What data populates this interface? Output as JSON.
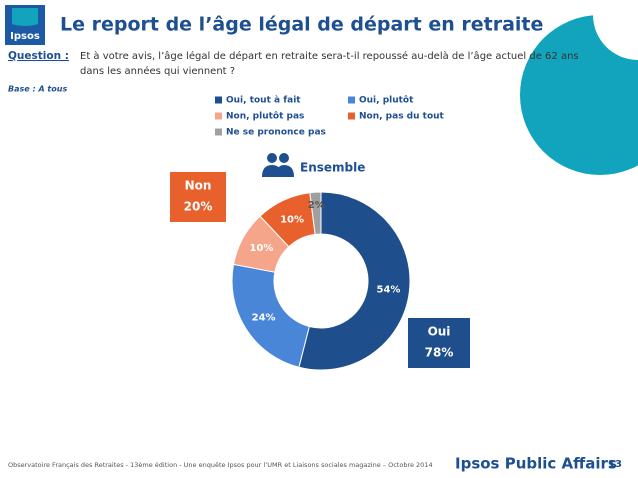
{
  "header": {
    "logo": "Ipsos",
    "title": "Le report de l’âge légal de départ en retraite"
  },
  "question": {
    "label": "Question :",
    "lines": [
      "Et à votre avis, l’âge légal de départ en retraite sera-t-il repoussé au-delà de l’âge actuel de 62 ans",
      "dans les années qui viennent ?"
    ]
  },
  "base": "Base : A tous",
  "chart_data": {
    "type": "donut",
    "title": "Ensemble",
    "categories": [
      "Oui, tout à fait",
      "Oui, plutôt",
      "Non, plutôt pas",
      "Non, pas du tout",
      "Ne se prononce pas"
    ],
    "values": [
      54,
      24,
      10,
      10,
      2
    ],
    "value_labels": [
      "54%",
      "24%",
      "10%",
      "10%",
      "2%"
    ],
    "colors": [
      "#1f4e8c",
      "#4a86d8",
      "#f4a58a",
      "#e8602c",
      "#a0a0a0"
    ],
    "legend": "top",
    "annotations": [
      {
        "label": "Non",
        "text": "20%",
        "color": "#e8602c"
      },
      {
        "label": "Oui",
        "text": "78%",
        "color": "#1f4e8c"
      }
    ]
  },
  "footer": {
    "source": "Observatoire Français des Retraites - 13ème édition - Une enquête Ipsos pour  l’UMR et Liaisons sociales magazine – Octobre 2014",
    "brand": "Ipsos Public Affairs",
    "page": 13
  }
}
